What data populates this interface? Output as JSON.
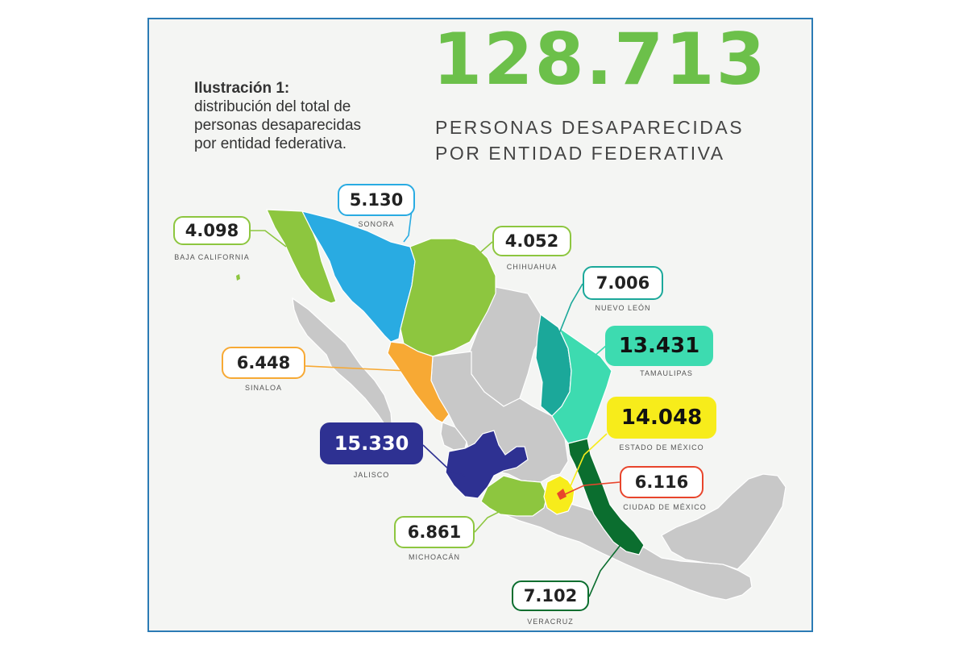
{
  "total": "128.713",
  "headline": [
    "PERSONAS DESAPARECIDAS",
    "POR ENTIDAD FEDERATIVA"
  ],
  "caption": {
    "title": "Ilustración 1:",
    "lines": [
      "distribución del total de",
      "personas desaparecidas",
      "por entidad federativa."
    ]
  },
  "states": [
    {
      "name": "BAJA CALIFORNIA",
      "value": "4.098",
      "color": "#8dc63f",
      "style": "outline"
    },
    {
      "name": "SONORA",
      "value": "5.130",
      "color": "#29abe2",
      "style": "outline"
    },
    {
      "name": "CHIHUAHUA",
      "value": "4.052",
      "color": "#8dc63f",
      "style": "outline"
    },
    {
      "name": "NUEVO LEÓN",
      "value": "7.006",
      "color": "#1ba89a",
      "style": "outline"
    },
    {
      "name": "TAMAULIPAS",
      "value": "13.431",
      "color": "#3ddbb0",
      "style": "filled"
    },
    {
      "name": "SINALOA",
      "value": "6.448",
      "color": "#f7a934",
      "style": "outline"
    },
    {
      "name": "JALISCO",
      "value": "15.330",
      "color": "#2e3192",
      "style": "dark"
    },
    {
      "name": "ESTADO DE MÉXICO",
      "value": "14.048",
      "color": "#f7ec1b",
      "style": "filled"
    },
    {
      "name": "CIUDAD DE MÉXICO",
      "value": "6.116",
      "color": "#e8452c",
      "style": "outline"
    },
    {
      "name": "MICHOACÁN",
      "value": "6.861",
      "color": "#8dc63f",
      "style": "outline"
    },
    {
      "name": "VERACRUZ",
      "value": "7.102",
      "color": "#0b6e2f",
      "style": "outline"
    }
  ],
  "colors": {
    "highlight": "#6cc04a",
    "border": "#2b7bb5",
    "other_states": "#c8c8c8"
  }
}
